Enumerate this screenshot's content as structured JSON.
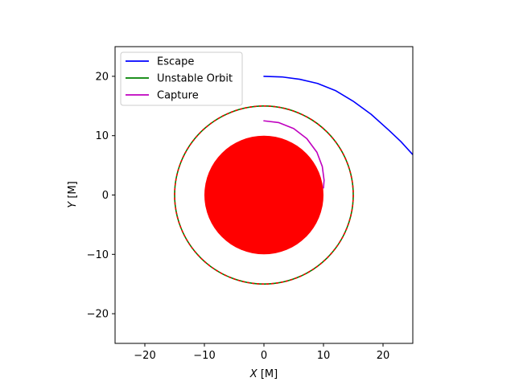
{
  "chart_data": {
    "type": "line",
    "title": "",
    "xlabel": {
      "var": "X",
      "unit": " [M]"
    },
    "ylabel": {
      "var": "Y",
      "unit": " [M]"
    },
    "xlim": [
      -25,
      25
    ],
    "ylim": [
      -25,
      25
    ],
    "xticks": [
      -20,
      -10,
      0,
      10,
      20
    ],
    "yticks": [
      -20,
      -10,
      0,
      10,
      20
    ],
    "xtick_labels": [
      "−20",
      "−10",
      "0",
      "10",
      "20"
    ],
    "ytick_labels": [
      "−20",
      "−10",
      "0",
      "10",
      "20"
    ],
    "grid": false,
    "legend_position": "top-left",
    "black_hole": {
      "center": [
        0,
        0
      ],
      "radius": 10,
      "color": "#ff0000"
    },
    "series": [
      {
        "name": "Escape",
        "color": "#0000ff",
        "points": [
          [
            0,
            20
          ],
          [
            3,
            19.9
          ],
          [
            6,
            19.5
          ],
          [
            9,
            18.8
          ],
          [
            12,
            17.6
          ],
          [
            15,
            15.8
          ],
          [
            18,
            13.6
          ],
          [
            21,
            10.9
          ],
          [
            23,
            9.0
          ],
          [
            25,
            6.8
          ]
        ]
      },
      {
        "name": "Unstable Orbit",
        "color": "#008000",
        "circle": {
          "center": [
            0,
            0
          ],
          "radius": 15
        }
      },
      {
        "name": "Capture",
        "color": "#bf00bf",
        "points": [
          [
            0,
            12.5
          ],
          [
            2.5,
            12.2
          ],
          [
            5,
            11.2
          ],
          [
            7.2,
            9.5
          ],
          [
            8.9,
            7.2
          ],
          [
            9.8,
            4.8
          ],
          [
            10.1,
            2.5
          ],
          [
            10,
            1.2
          ]
        ]
      }
    ],
    "overlay_circle": {
      "center": [
        0,
        0
      ],
      "radius": 15,
      "color": "#ff0000",
      "dashed": true
    }
  }
}
